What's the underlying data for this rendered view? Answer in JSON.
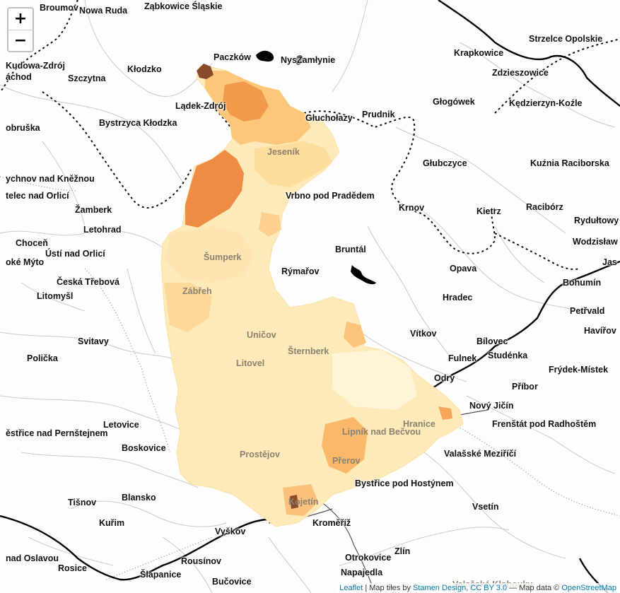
{
  "controls": {
    "zoom_in": "+",
    "zoom_out": "−"
  },
  "attribution": {
    "leaflet": "Leaflet",
    "sep1": " | Map tiles by ",
    "stamen": "Stamen Design",
    "sep2": ", ",
    "license": "CC BY 3.0",
    "sep3": " — Map data © ",
    "osm": "OpenStreetMap"
  },
  "colors": {
    "choropleth_low": "#fff7d6",
    "choropleth_mid": "#fdd38c",
    "choropleth_high": "#f08a3c",
    "choropleth_max": "#8c4a2a"
  },
  "places": [
    {
      "name": "Broumov",
      "dim": false
    },
    {
      "name": "Nowa Ruda",
      "dim": false
    },
    {
      "name": "Ząbkowice Śląskie",
      "dim": false
    },
    {
      "name": "Paczków",
      "dim": false
    },
    {
      "name": "Nysa",
      "dim": false
    },
    {
      "name": "Zamłynie",
      "dim": false
    },
    {
      "name": "Krapkowice",
      "dim": false
    },
    {
      "name": "Strzelce Opolskie",
      "dim": false
    },
    {
      "name": "Kudowa-Zdrój",
      "dim": false
    },
    {
      "name": "áchod",
      "dim": false
    },
    {
      "name": "Szczytna",
      "dim": false
    },
    {
      "name": "Kłodzko",
      "dim": false
    },
    {
      "name": "Zdzieszowice",
      "dim": false
    },
    {
      "name": "Lądek-Zdrój",
      "dim": false
    },
    {
      "name": "Głuchołazy",
      "dim": false
    },
    {
      "name": "Prudnik",
      "dim": false
    },
    {
      "name": "Głogówek",
      "dim": false
    },
    {
      "name": "Kędzierzyn-Koźle",
      "dim": false
    },
    {
      "name": "obruška",
      "dim": false
    },
    {
      "name": "Bystrzyca Kłodzka",
      "dim": false
    },
    {
      "name": "Jeseník",
      "dim": true
    },
    {
      "name": "Głubczyce",
      "dim": false
    },
    {
      "name": "Kuźnia Raciborska",
      "dim": false
    },
    {
      "name": "ychnov nad Kněžnou",
      "dim": false
    },
    {
      "name": "telec nad Orlicí",
      "dim": false
    },
    {
      "name": "Vrbno pod Pradědem",
      "dim": false
    },
    {
      "name": "Krnov",
      "dim": false
    },
    {
      "name": "Racibórz",
      "dim": false
    },
    {
      "name": "Kietrz",
      "dim": false
    },
    {
      "name": "Rydułtowy",
      "dim": false
    },
    {
      "name": "Žamberk",
      "dim": false
    },
    {
      "name": "Letohrad",
      "dim": false
    },
    {
      "name": "Wodzisław",
      "dim": false
    },
    {
      "name": "Choceň",
      "dim": false
    },
    {
      "name": "Ústí nad Orlicí",
      "dim": false
    },
    {
      "name": "Bruntál",
      "dim": false
    },
    {
      "name": "Šumperk",
      "dim": true
    },
    {
      "name": "oké Mýto",
      "dim": false
    },
    {
      "name": "Rýmařov",
      "dim": false
    },
    {
      "name": "Opava",
      "dim": false
    },
    {
      "name": "Jas",
      "dim": false
    },
    {
      "name": "Česká Třebová",
      "dim": false
    },
    {
      "name": "Bohumín",
      "dim": false
    },
    {
      "name": "Zábřeh",
      "dim": true
    },
    {
      "name": "Litomyšl",
      "dim": false
    },
    {
      "name": "Hradec",
      "dim": false
    },
    {
      "name": "Petřvald",
      "dim": false
    },
    {
      "name": "Havířov",
      "dim": false
    },
    {
      "name": "Uničov",
      "dim": true
    },
    {
      "name": "Vítkov",
      "dim": false
    },
    {
      "name": "Bílovec",
      "dim": false
    },
    {
      "name": "Svitavy",
      "dim": false
    },
    {
      "name": "Šternberk",
      "dim": true
    },
    {
      "name": "Studénka",
      "dim": false
    },
    {
      "name": "Polička",
      "dim": false
    },
    {
      "name": "Litovel",
      "dim": true
    },
    {
      "name": "Fulnek",
      "dim": false
    },
    {
      "name": "Frýdek-Místek",
      "dim": false
    },
    {
      "name": "Odry",
      "dim": false
    },
    {
      "name": "Příbor",
      "dim": false
    },
    {
      "name": "Nový Jičín",
      "dim": false
    },
    {
      "name": "Hranice",
      "dim": true
    },
    {
      "name": "Letovice",
      "dim": false
    },
    {
      "name": "Frenštát pod Radhoštěm",
      "dim": false
    },
    {
      "name": "ěstřice nad Pernštejnem",
      "dim": false
    },
    {
      "name": "Lipník nad Bečvou",
      "dim": true
    },
    {
      "name": "Boskovice",
      "dim": false
    },
    {
      "name": "Valašské Meziříčí",
      "dim": false
    },
    {
      "name": "Prostějov",
      "dim": true
    },
    {
      "name": "Přerov",
      "dim": true
    },
    {
      "name": "Bystřice pod Hostýnem",
      "dim": false
    },
    {
      "name": "Blansko",
      "dim": false
    },
    {
      "name": "Tišnov",
      "dim": false
    },
    {
      "name": "Kojetín",
      "dim": true
    },
    {
      "name": "Vsetín",
      "dim": false
    },
    {
      "name": "Kuřim",
      "dim": false
    },
    {
      "name": "Kroměříž",
      "dim": false
    },
    {
      "name": "Vyškov",
      "dim": false
    },
    {
      "name": "Otrokovice",
      "dim": false
    },
    {
      "name": "Zlín",
      "dim": false
    },
    {
      "name": "nad Oslavou",
      "dim": false
    },
    {
      "name": "Rousínov",
      "dim": false
    },
    {
      "name": "Rosice",
      "dim": false
    },
    {
      "name": "Napajedla",
      "dim": false
    },
    {
      "name": "Šlapanice",
      "dim": false
    },
    {
      "name": "Bučovice",
      "dim": false
    },
    {
      "name": "Valašské Klobouky",
      "dim": true
    }
  ]
}
